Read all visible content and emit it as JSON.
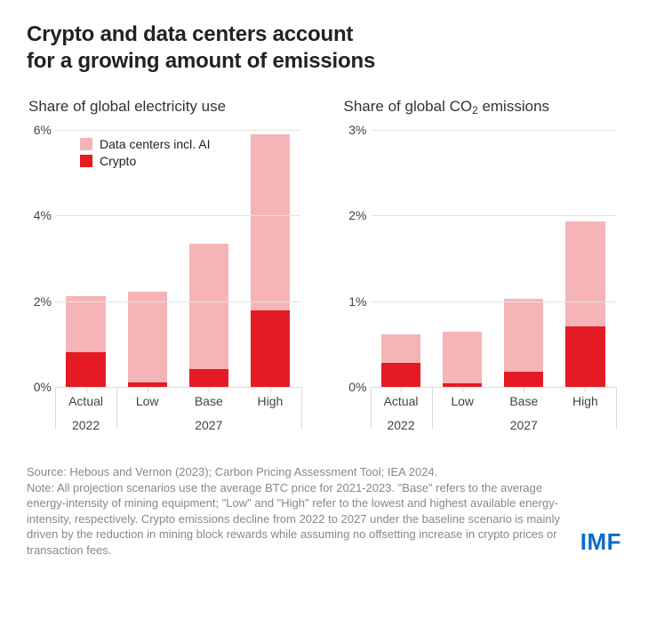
{
  "title_line1": "Crypto and data centers account",
  "title_line2": "for a growing amount of emissions",
  "colors": {
    "crypto": "#e41b24",
    "datacenters": "#f5b5b6",
    "grid": "#e3e3e3",
    "axis": "#dadada",
    "text": "#444444",
    "footnote": "#888888",
    "logo": "#0a6cc9",
    "background": "#ffffff"
  },
  "legend": {
    "datacenters": "Data centers incl. AI",
    "crypto": "Crypto"
  },
  "left_chart": {
    "subtitle": "Share of global electricity use",
    "ymax": 6,
    "ytick_step": 2,
    "ysuffix": "%",
    "categories": [
      "Actual",
      "Low",
      "Base",
      "High"
    ],
    "crypto": [
      0.8,
      0.1,
      0.42,
      1.78
    ],
    "datacenters": [
      1.32,
      2.12,
      2.92,
      4.1
    ],
    "groups": [
      {
        "label": "2022",
        "span": 1
      },
      {
        "label": "2027",
        "span": 3
      }
    ]
  },
  "right_chart": {
    "subtitle_html": "Share of global CO<sub>2</sub> emissions",
    "ymax": 3,
    "ytick_step": 1,
    "ysuffix": "%",
    "categories": [
      "Actual",
      "Low",
      "Base",
      "High"
    ],
    "crypto": [
      0.28,
      0.04,
      0.18,
      0.7
    ],
    "datacenters": [
      0.33,
      0.6,
      0.84,
      1.22
    ],
    "groups": [
      {
        "label": "2022",
        "span": 1
      },
      {
        "label": "2027",
        "span": 3
      }
    ]
  },
  "footnote": "Source: Hebous and Vernon (2023); Carbon Pricing Assessment Tool; IEA 2024.\nNote: All projection scenarios use the average BTC price for 2021-2023. \"Base\" refers to the average energy-intensity of mining equipment; \"Low\" and \"High\" refer to the lowest and highest available energy-intensity, respectively. Crypto emissions decline from 2022 to 2027 under the baseline scenario is mainly driven by the reduction in mining block rewards while assuming no offsetting increase in crypto prices or transaction fees.",
  "logo": "IMF"
}
